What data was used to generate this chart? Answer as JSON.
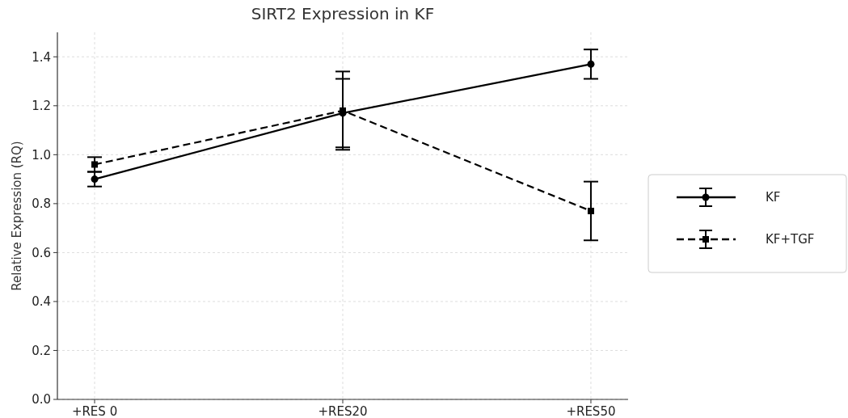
{
  "chart_data": {
    "type": "line",
    "title": "SIRT2 Expression in KF",
    "ylabel": "Relative Expression (RQ)",
    "categories": [
      "+RES 0",
      "+RES20",
      "+RES50"
    ],
    "series": [
      {
        "name": "KF",
        "color": "#000000",
        "values": [
          0.9,
          1.17,
          1.37
        ],
        "errors": [
          0.03,
          0.14,
          0.06
        ],
        "marker": "circle",
        "line_style": "solid"
      },
      {
        "name": "KF+TGF",
        "color": "#000000",
        "values": [
          0.96,
          1.18,
          0.77
        ],
        "errors": [
          0.03,
          0.16,
          0.12
        ],
        "marker": "square",
        "line_style": "dashed"
      }
    ],
    "ylim": [
      0,
      1.5
    ],
    "yticks": [
      {
        "value": 0,
        "label": "0.0"
      },
      0.2,
      0.4,
      0.6,
      0.8,
      {
        "value": 1,
        "label": "1.0"
      },
      1.2,
      1.4
    ],
    "grid": true,
    "legend": "right"
  }
}
